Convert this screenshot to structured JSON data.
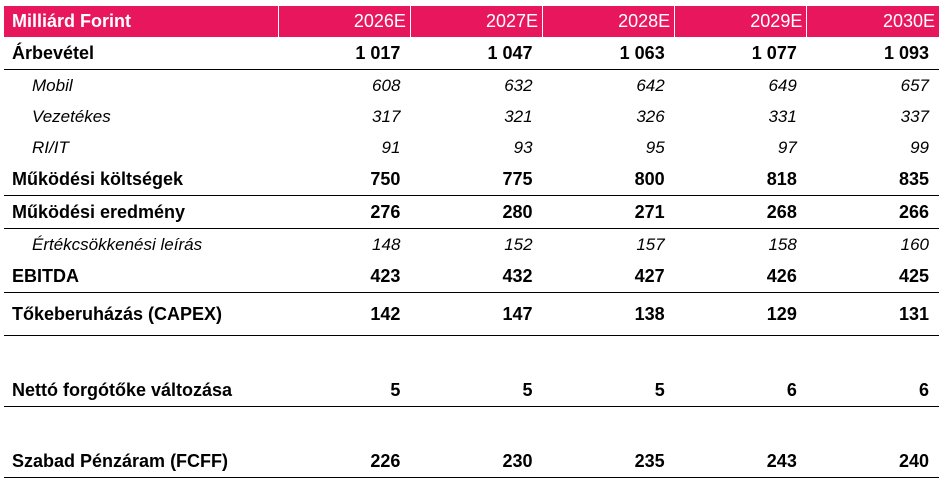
{
  "table": {
    "header": {
      "label": "Milliárd Forint",
      "years": [
        "2026E",
        "2027E",
        "2028E",
        "2029E",
        "2030E"
      ]
    },
    "rows": [
      {
        "label": "Árbevétel",
        "style": "bold",
        "values": [
          "1 017",
          "1 047",
          "1 063",
          "1 077",
          "1 093"
        ]
      },
      {
        "label": "Mobil",
        "style": "ital",
        "values": [
          "608",
          "632",
          "642",
          "649",
          "657"
        ]
      },
      {
        "label": "Vezetékes",
        "style": "ital",
        "values": [
          "317",
          "321",
          "326",
          "331",
          "337"
        ]
      },
      {
        "label": "RI/IT",
        "style": "ital",
        "values": [
          "91",
          "93",
          "95",
          "97",
          "99"
        ]
      },
      {
        "label": "Működési költségek",
        "style": "bold",
        "values": [
          "750",
          "775",
          "800",
          "818",
          "835"
        ]
      },
      {
        "label": "Működési eredmény",
        "style": "bold",
        "values": [
          "276",
          "280",
          "271",
          "268",
          "266"
        ]
      },
      {
        "label": "Értékcsökkenési leírás",
        "style": "ital",
        "values": [
          "148",
          "152",
          "157",
          "158",
          "160"
        ]
      },
      {
        "label": "EBITDA",
        "style": "bold",
        "values": [
          "423",
          "432",
          "427",
          "426",
          "425"
        ]
      },
      {
        "label": "Tőkeberuházás (CAPEX)",
        "style": "bold",
        "values": [
          "142",
          "147",
          "138",
          "129",
          "131"
        ]
      },
      {
        "label": "Nettó forgótőke változása",
        "style": "bold",
        "values": [
          "5",
          "5",
          "5",
          "6",
          "6"
        ]
      },
      {
        "label": "Szabad Pénzáram (FCFF)",
        "style": "bold",
        "values": [
          "226",
          "230",
          "235",
          "243",
          "240"
        ]
      }
    ]
  },
  "colors": {
    "header_background": "#e8175d",
    "header_text": "#ffffff",
    "rule": "#000000"
  }
}
